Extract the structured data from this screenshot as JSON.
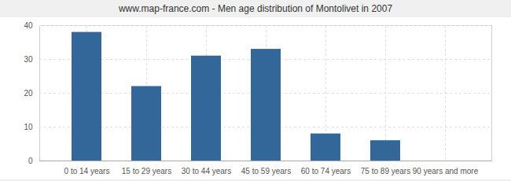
{
  "chart_data": {
    "type": "bar",
    "title": "www.map-france.com - Men age distribution of Montolivet in 2007",
    "categories": [
      "0 to 14 years",
      "15 to 29 years",
      "30 to 44 years",
      "45 to 59 years",
      "60 to 74 years",
      "75 to 89 years",
      "90 years and more"
    ],
    "values": [
      38,
      22,
      31,
      33,
      8,
      6,
      0
    ],
    "color": "#336699",
    "ylim": [
      0,
      40
    ],
    "yticks": [
      0,
      10,
      20,
      30,
      40
    ],
    "grid": true
  }
}
